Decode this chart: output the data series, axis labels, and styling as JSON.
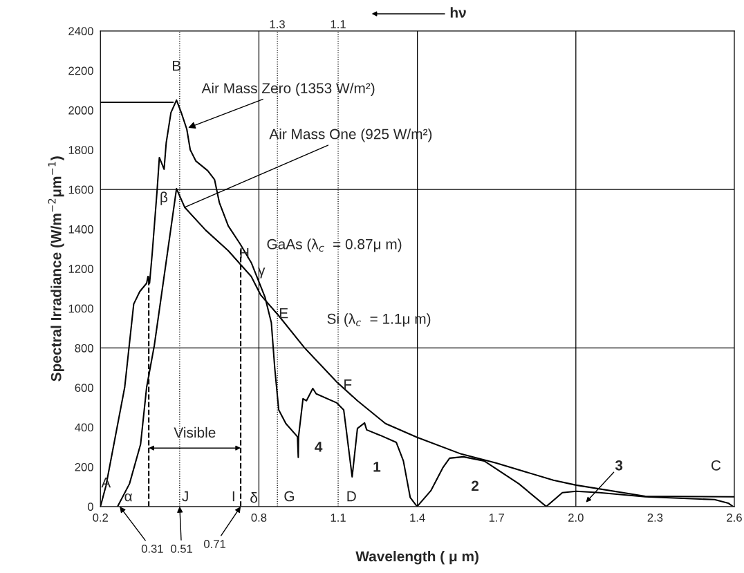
{
  "chart_data": {
    "type": "line",
    "xlabel": "Wavelength ( μ m)",
    "ylabel": "Spectral Irradiance (W/m$^{−2}$μm$^{−1}$)",
    "xlim": [
      0.2,
      2.6
    ],
    "ylim": [
      0,
      2400
    ],
    "xticks": [
      0.2,
      0.8,
      1.1,
      1.4,
      1.7,
      {
        "value": 2.0,
        "label": "2.0"
      },
      2.3,
      2.6
    ],
    "yticks": [
      0,
      200,
      400,
      600,
      800,
      1000,
      1200,
      1400,
      1600,
      1800,
      2000,
      2200,
      2400
    ],
    "grid": false,
    "legend": false,
    "marker": "none",
    "series": [
      {
        "color": "#000000",
        "line_style": "solid",
        "x": [
          0.2,
          0.221,
          0.292,
          0.326,
          0.349,
          0.375,
          0.38,
          0.386,
          0.396,
          0.415,
          0.423,
          0.441,
          0.449,
          0.467,
          0.488,
          0.506,
          0.527,
          0.54,
          0.561,
          0.606,
          0.632,
          0.65,
          0.684,
          0.729,
          0.771,
          0.802,
          0.823,
          0.847,
          0.86,
          0.875,
          0.902,
          0.946,
          0.949,
          0.95,
          0.967,
          0.98,
          1.004,
          1.017,
          1.095,
          1.121,
          1.129,
          1.153,
          1.173,
          1.2,
          1.208,
          1.26,
          1.32,
          1.347,
          1.373,
          1.399,
          1.451,
          1.496,
          1.522,
          1.574,
          1.653,
          1.784,
          1.888,
          1.949,
          2.001,
          2.09,
          2.263,
          2.525,
          2.577,
          2.595
        ],
        "values": [
          0,
          105,
          603,
          1022,
          1085,
          1127,
          1161,
          1127,
          1277,
          1604,
          1761,
          1702,
          1835,
          1988,
          2051,
          1988,
          1904,
          1800,
          1744,
          1695,
          1650,
          1535,
          1416,
          1325,
          1231,
          1127,
          1057,
          928,
          698,
          488,
          419,
          352,
          248,
          352,
          544,
          534,
          596,
          569,
          523,
          488,
          405,
          150,
          394,
          422,
          387,
          359,
          324,
          230,
          45,
          0,
          80,
          195,
          244,
          251,
          230,
          115,
          0,
          70,
          77,
          70,
          49,
          35,
          17,
          0
        ]
      },
      {
        "color": "#000000",
        "line_style": "solid",
        "x": [
          0.265,
          0.31,
          0.352,
          0.375,
          0.404,
          0.441,
          0.488,
          0.519,
          0.598,
          0.684,
          0.771,
          0.807,
          0.875,
          0.972,
          1.095,
          1.173,
          1.279,
          1.399,
          1.566,
          1.697,
          1.915,
          2.001,
          2.263,
          2.6
        ],
        "values": [
          0,
          115,
          314,
          603,
          813,
          1161,
          1604,
          1510,
          1395,
          1291,
          1161,
          1067,
          963,
          802,
          628,
          534,
          419,
          349,
          265,
          220,
          133,
          108,
          52,
          49
        ]
      },
      {
        "color": "#000000",
        "line_style": "dashed",
        "x": [
          0.383,
          0.383
        ],
        "values": [
          0,
          1161
        ]
      },
      {
        "color": "#000000",
        "line_style": "dashed",
        "x": [
          0.731,
          0.731
        ],
        "values": [
          0,
          1300
        ]
      },
      {
        "color": "#000000",
        "line_style": "solid",
        "x": [
          0.2,
          0.475
        ],
        "values": [
          2040,
          2040
        ]
      }
    ],
    "ref_lines": [
      {
        "axis": "y",
        "value": 800,
        "color": "#000000",
        "line_style": "solid"
      },
      {
        "axis": "y",
        "value": 1600,
        "color": "#000000",
        "line_style": "solid"
      },
      {
        "axis": "x",
        "value": 0.8,
        "color": "#000000",
        "line_style": "solid"
      },
      {
        "axis": "x",
        "value": 1.4,
        "color": "#000000",
        "line_style": "solid"
      },
      {
        "axis": "x",
        "value": 2.0,
        "color": "#000000",
        "line_style": "solid"
      },
      {
        "axis": "x",
        "value": 0.5,
        "color": "#000000",
        "line_style": "dotted"
      },
      {
        "axis": "x",
        "value": 0.87,
        "color": "#000000",
        "line_style": "dotted"
      },
      {
        "axis": "x",
        "value": 1.1,
        "color": "#000000",
        "line_style": "dotted"
      }
    ],
    "annotations": [
      {
        "text": "Air Mass Zero (1353 W/m²)",
        "x": 0.532,
        "y": 1911
      },
      {
        "text": "Air Mass One (925 W/m²)",
        "x": 0.519,
        "y": 1510
      },
      "3",
      {
        "text": "0.31",
        "x": 0.273,
        "y": 0
      },
      {
        "text": "0.51",
        "x": 0.5,
        "y": 0
      },
      {
        "text": "0.71",
        "x": 0.731,
        "y": 0
      },
      "hν",
      "Visible",
      "GaAs (λ$_{c}$  = 0.87μ m)",
      "Si (λ$_{c}$  = 1.1μ m)",
      {
        "text": "B",
        "x": 0.488,
        "y": 2218
      },
      "β",
      {
        "text": "H",
        "x": 0.745,
        "y": 1273
      },
      {
        "text": "γ",
        "x": 0.81,
        "y": 1186
      },
      "E",
      "F",
      {
        "text": "A",
        "x": 0.221,
        "y": 115
      },
      "α",
      "J",
      "I",
      "δ",
      "G",
      "D",
      "C",
      "4",
      "1",
      "2",
      "1.3",
      "1.1"
    ]
  }
}
